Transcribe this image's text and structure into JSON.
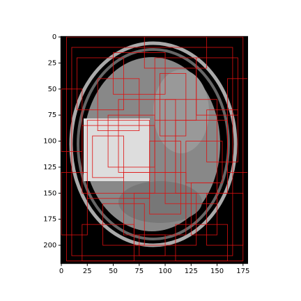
{
  "chart_data": {
    "type": "image",
    "xlim": [
      -0.5,
      179.5
    ],
    "ylim": [
      217.5,
      -0.5
    ],
    "xticks": [
      0,
      25,
      50,
      75,
      100,
      125,
      150,
      175
    ],
    "yticks": [
      0,
      25,
      50,
      75,
      100,
      125,
      150,
      175,
      200
    ],
    "box_color": "#e01010",
    "boxes": [
      [
        5,
        0,
        175,
        215
      ],
      [
        10,
        10,
        165,
        210
      ],
      [
        20,
        85,
        90,
        150
      ],
      [
        25,
        80,
        85,
        155
      ],
      [
        30,
        95,
        60,
        135
      ],
      [
        45,
        75,
        90,
        125
      ],
      [
        55,
        60,
        110,
        130
      ],
      [
        90,
        20,
        130,
        80
      ],
      [
        95,
        35,
        120,
        95
      ],
      [
        100,
        60,
        150,
        160
      ],
      [
        110,
        80,
        160,
        150
      ],
      [
        120,
        100,
        155,
        140
      ],
      [
        60,
        130,
        120,
        190
      ],
      [
        70,
        150,
        130,
        200
      ],
      [
        40,
        160,
        80,
        200
      ],
      [
        15,
        20,
        60,
        70
      ],
      [
        130,
        20,
        170,
        75
      ],
      [
        140,
        150,
        175,
        200
      ],
      [
        0,
        50,
        20,
        110
      ],
      [
        160,
        40,
        180,
        130
      ],
      [
        80,
        0,
        140,
        30
      ],
      [
        20,
        180,
        70,
        215
      ],
      [
        110,
        180,
        160,
        215
      ],
      [
        35,
        40,
        75,
        90
      ],
      [
        85,
        100,
        115,
        170
      ],
      [
        125,
        140,
        150,
        190
      ],
      [
        0,
        130,
        25,
        190
      ],
      [
        50,
        15,
        100,
        55
      ],
      [
        140,
        70,
        170,
        120
      ],
      [
        75,
        190,
        100,
        210
      ]
    ]
  }
}
